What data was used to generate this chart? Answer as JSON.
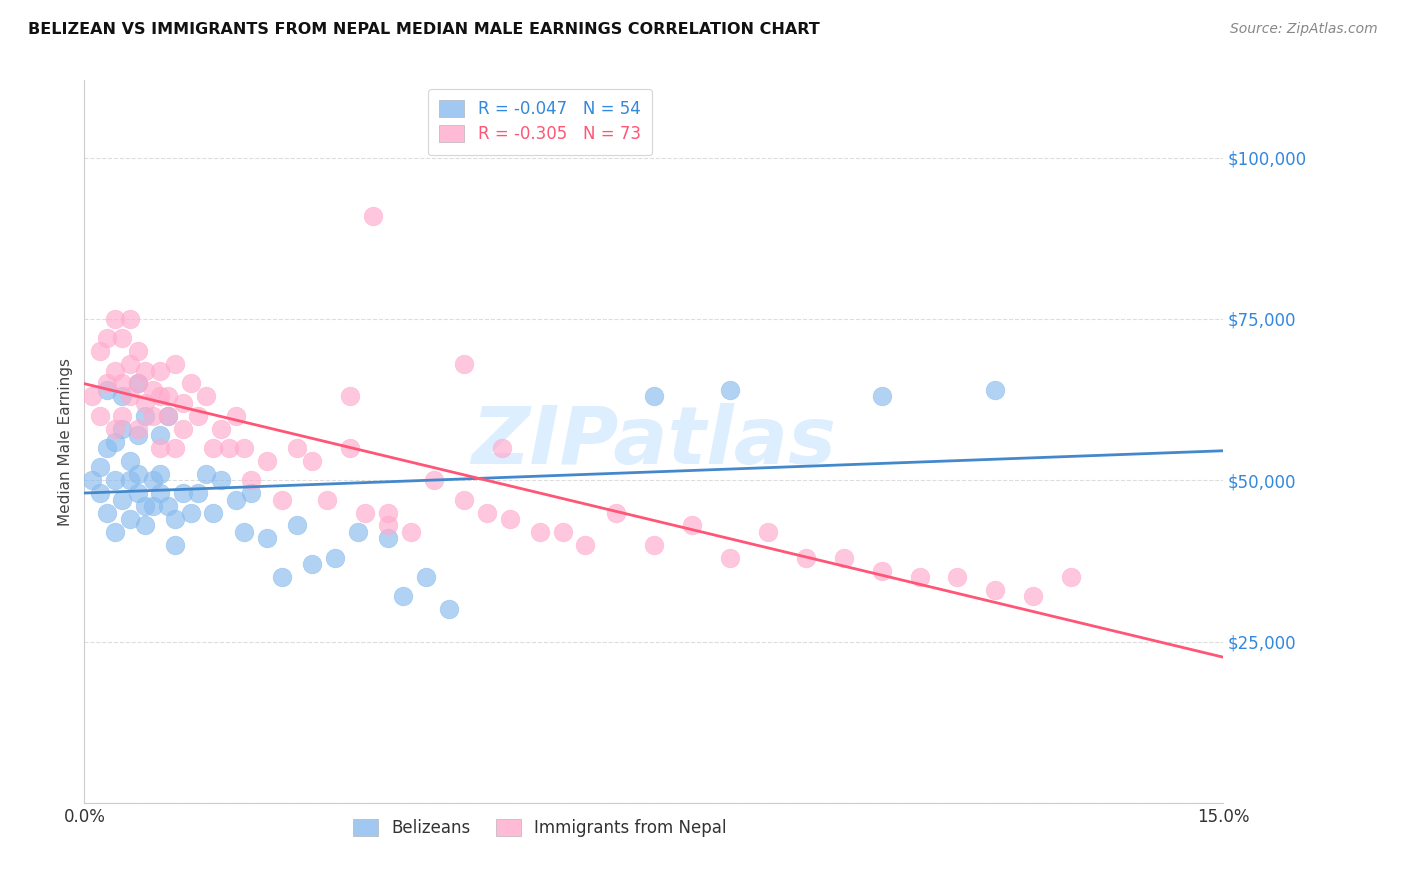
{
  "title": "BELIZEAN VS IMMIGRANTS FROM NEPAL MEDIAN MALE EARNINGS CORRELATION CHART",
  "source": "Source: ZipAtlas.com",
  "ylabel_label": "Median Male Earnings",
  "yticks": [
    0,
    25000,
    50000,
    75000,
    100000
  ],
  "ytick_labels": [
    "",
    "$25,000",
    "$50,000",
    "$75,000",
    "$100,000"
  ],
  "xmin": 0.0,
  "xmax": 0.15,
  "ymin": 0,
  "ymax": 112000,
  "belizean_color": "#88bbee",
  "nepal_color": "#ffaacc",
  "belizean_R": "-0.047",
  "belizean_N": "54",
  "nepal_R": "-0.305",
  "nepal_N": "73",
  "belizean_line_color": "#4488cc",
  "nepal_line_color": "#ff5577",
  "watermark": "ZIPatlas",
  "watermark_color": "#ddeeff",
  "background_color": "#ffffff",
  "grid_color": "#dddddd",
  "belizean_x": [
    0.001,
    0.002,
    0.002,
    0.003,
    0.003,
    0.003,
    0.004,
    0.004,
    0.004,
    0.005,
    0.005,
    0.005,
    0.006,
    0.006,
    0.006,
    0.007,
    0.007,
    0.007,
    0.007,
    0.008,
    0.008,
    0.008,
    0.009,
    0.009,
    0.01,
    0.01,
    0.01,
    0.011,
    0.011,
    0.012,
    0.012,
    0.013,
    0.014,
    0.015,
    0.016,
    0.017,
    0.018,
    0.02,
    0.021,
    0.022,
    0.024,
    0.026,
    0.028,
    0.03,
    0.033,
    0.036,
    0.04,
    0.042,
    0.045,
    0.048,
    0.075,
    0.085,
    0.105,
    0.12
  ],
  "belizean_y": [
    50000,
    52000,
    48000,
    64000,
    55000,
    45000,
    50000,
    56000,
    42000,
    63000,
    58000,
    47000,
    50000,
    44000,
    53000,
    65000,
    48000,
    51000,
    57000,
    46000,
    60000,
    43000,
    50000,
    46000,
    48000,
    51000,
    57000,
    46000,
    60000,
    40000,
    44000,
    48000,
    45000,
    48000,
    51000,
    45000,
    50000,
    47000,
    42000,
    48000,
    41000,
    35000,
    43000,
    37000,
    38000,
    42000,
    41000,
    32000,
    35000,
    30000,
    63000,
    64000,
    63000,
    64000
  ],
  "nepal_x": [
    0.001,
    0.002,
    0.002,
    0.003,
    0.003,
    0.004,
    0.004,
    0.004,
    0.005,
    0.005,
    0.005,
    0.006,
    0.006,
    0.006,
    0.007,
    0.007,
    0.007,
    0.008,
    0.008,
    0.009,
    0.009,
    0.01,
    0.01,
    0.01,
    0.011,
    0.011,
    0.012,
    0.012,
    0.013,
    0.013,
    0.014,
    0.015,
    0.016,
    0.017,
    0.018,
    0.019,
    0.02,
    0.021,
    0.022,
    0.024,
    0.026,
    0.028,
    0.03,
    0.032,
    0.035,
    0.037,
    0.04,
    0.043,
    0.046,
    0.05,
    0.053,
    0.056,
    0.06,
    0.063,
    0.066,
    0.07,
    0.075,
    0.08,
    0.085,
    0.09,
    0.095,
    0.1,
    0.105,
    0.11,
    0.115,
    0.12,
    0.125,
    0.13,
    0.035,
    0.04,
    0.05,
    0.055,
    0.038
  ],
  "nepal_y": [
    63000,
    60000,
    70000,
    65000,
    72000,
    67000,
    75000,
    58000,
    72000,
    65000,
    60000,
    68000,
    63000,
    75000,
    65000,
    70000,
    58000,
    62000,
    67000,
    60000,
    64000,
    63000,
    55000,
    67000,
    60000,
    63000,
    55000,
    68000,
    62000,
    58000,
    65000,
    60000,
    63000,
    55000,
    58000,
    55000,
    60000,
    55000,
    50000,
    53000,
    47000,
    55000,
    53000,
    47000,
    55000,
    45000,
    45000,
    42000,
    50000,
    47000,
    45000,
    44000,
    42000,
    42000,
    40000,
    45000,
    40000,
    43000,
    38000,
    42000,
    38000,
    38000,
    36000,
    35000,
    35000,
    33000,
    32000,
    35000,
    63000,
    43000,
    68000,
    55000,
    91000
  ]
}
